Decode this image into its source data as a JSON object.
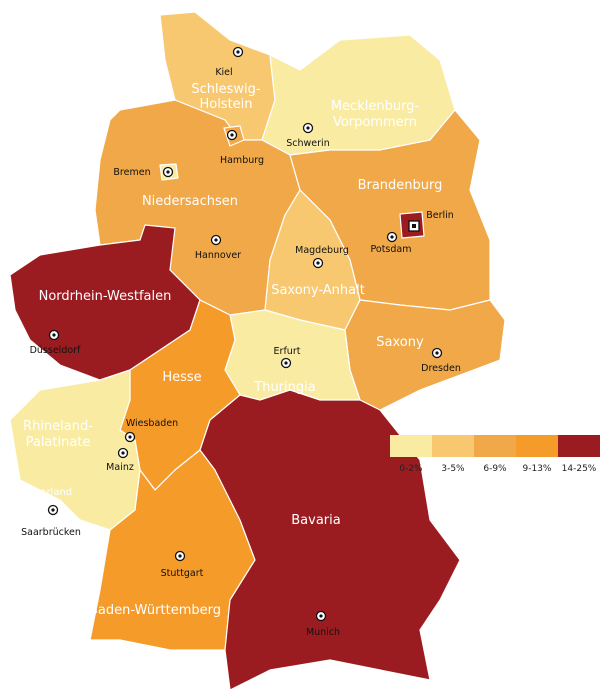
{
  "states": [
    {
      "label_lines": [
        "Schleswig-",
        "Holstein"
      ],
      "color": "#f8c870"
    },
    {
      "label_lines": [
        "Mecklenburg-",
        "Vorpommern"
      ],
      "color": "#f9eca2"
    },
    {
      "label_lines": [
        "Niedersachsen"
      ],
      "color": "#f0a848"
    },
    {
      "label_lines": [
        "Brandenburg"
      ],
      "color": "#f0a848"
    },
    {
      "label_lines": [
        "Saxony-Anhalt"
      ],
      "color": "#f8c870"
    },
    {
      "label_lines": [
        "Saxony"
      ],
      "color": "#f0a848"
    },
    {
      "label_lines": [
        "Thuringia"
      ],
      "color": "#f9eca2"
    },
    {
      "label_lines": [
        "Nordrhein-Westfalen"
      ],
      "color": "#9b1c20"
    },
    {
      "label_lines": [
        "Hesse"
      ],
      "color": "#f59b2a"
    },
    {
      "label_lines": [
        "Rhineland-",
        "Palatinate"
      ],
      "color": "#f9eca2"
    },
    {
      "label_lines": [
        "Baden-Württemberg"
      ],
      "color": "#f59b2a"
    },
    {
      "label_lines": [
        "Bavaria"
      ],
      "color": "#9b1c20"
    },
    {
      "label_lines": [],
      "color": "#f0a848"
    },
    {
      "label_lines": [],
      "color": "#f9eca2"
    },
    {
      "label_lines": [],
      "color": "#9b1c20"
    }
  ],
  "saarland_label": "Saarland",
  "cities": [
    "Kiel",
    "Hamburg",
    "Schwerin",
    "Bremen",
    "Hannover",
    "Berlin",
    "Potsdam",
    "Magdeburg",
    "Erfurt",
    "Dresden",
    "Düsseldorf",
    "Wiesbaden",
    "Mainz",
    "Saarbrücken",
    "Stuttgart",
    "Munich"
  ],
  "legend": [
    {
      "label": "0-2%",
      "color": "#f9eca2"
    },
    {
      "label": "3-5%",
      "color": "#f8c870"
    },
    {
      "label": "6-9%",
      "color": "#f0a848"
    },
    {
      "label": "9-13%",
      "color": "#f59b2a"
    },
    {
      "label": "14-25%",
      "color": "#9b1c20"
    }
  ]
}
